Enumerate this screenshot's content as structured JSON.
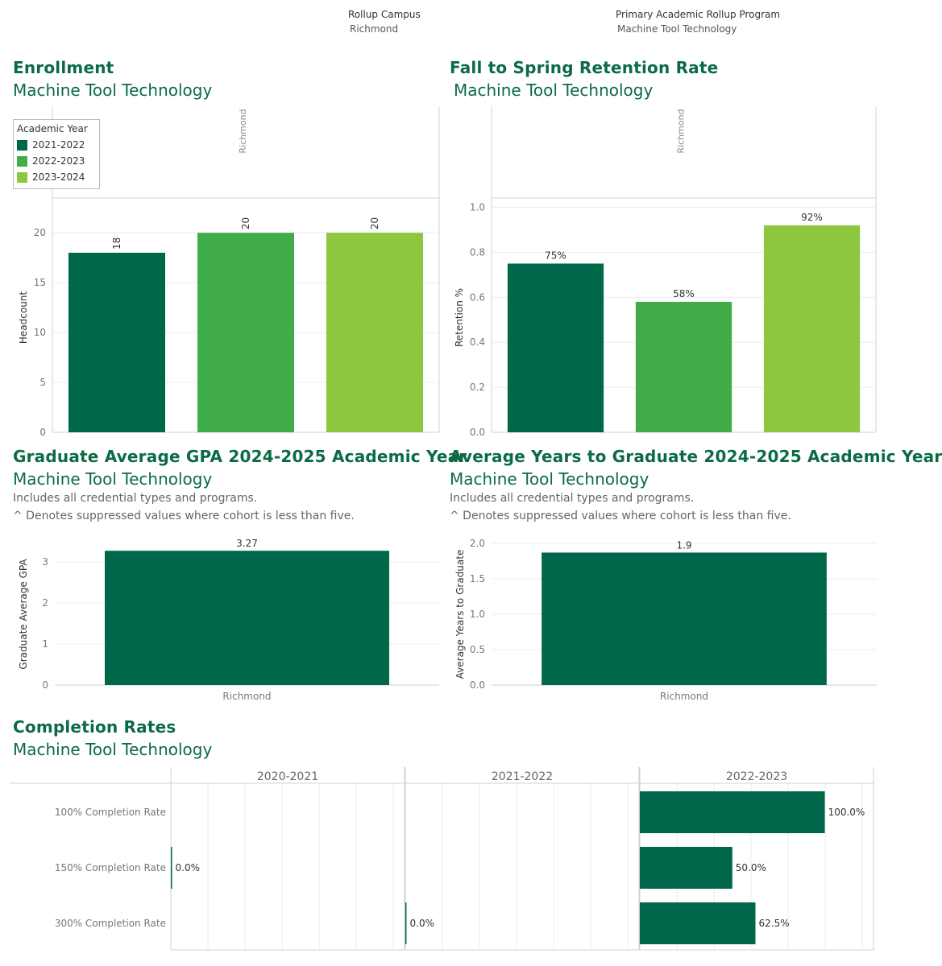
{
  "colors": {
    "title": "#0b6b45",
    "dark_green": "#00684a",
    "mid_green": "#40ad48",
    "light_green": "#8dc63f",
    "grid": "#ececec"
  },
  "filters": {
    "campus": {
      "label": "Rollup Campus",
      "value": "Richmond"
    },
    "program": {
      "label": "Primary Academic Rollup Program",
      "value": "Machine Tool Technology"
    }
  },
  "enrollment": {
    "title": "Enrollment",
    "subtitle": "Machine Tool Technology",
    "legend": {
      "title": "Academic Year",
      "items": [
        {
          "label": "2021-2022",
          "color": "#00684a"
        },
        {
          "label": "2022-2023",
          "color": "#40ad48"
        },
        {
          "label": "2023-2024",
          "color": "#8dc63f"
        }
      ]
    },
    "chart_data": {
      "type": "bar",
      "panel_label": "Richmond",
      "categories": [
        "2021-2022",
        "2022-2023",
        "2023-2024"
      ],
      "values": [
        18,
        20,
        20
      ],
      "data_labels": [
        "18",
        "20",
        "20"
      ],
      "ylabel": "Headcount",
      "ylim": [
        0,
        23
      ],
      "yticks": [
        0,
        5,
        10,
        15,
        20
      ],
      "ytick_labels": [
        "0",
        "5",
        "10",
        "15",
        "20"
      ]
    }
  },
  "retention": {
    "title": "Fall to Spring Retention Rate",
    "subtitle": "Machine Tool Technology",
    "chart_data": {
      "type": "bar",
      "panel_label": "Richmond",
      "categories": [
        "2021-2022",
        "2022-2023",
        "2023-2024"
      ],
      "values": [
        0.75,
        0.58,
        0.92
      ],
      "data_labels": [
        "75%",
        "58%",
        "92%"
      ],
      "ylabel": "Retention %",
      "ylim": [
        0,
        1.02
      ],
      "yticks": [
        0,
        0.2,
        0.4,
        0.6,
        0.8,
        1.0
      ],
      "ytick_labels": [
        "0.0",
        "0.2",
        "0.4",
        "0.6",
        "0.8",
        "1.0"
      ]
    }
  },
  "gpa": {
    "title": "Graduate Average GPA 2024-2025 Academic Year",
    "subtitle": "Machine Tool Technology",
    "note1": "Includes all credential types and programs.",
    "note2": "^ Denotes suppressed values where cohort is less than five.",
    "chart_data": {
      "type": "bar",
      "categories": [
        "Richmond"
      ],
      "values": [
        3.27
      ],
      "data_labels": [
        "3.27"
      ],
      "ylabel": "Graduate Average GPA",
      "ylim": [
        0,
        3.45
      ],
      "yticks": [
        0,
        1,
        2,
        3
      ],
      "ytick_labels": [
        "0",
        "1",
        "2",
        "3"
      ]
    }
  },
  "years": {
    "title": "Average Years to Graduate 2024-2025 Academic Year",
    "subtitle": "Machine Tool Technology",
    "note1": "Includes all credential types and programs.",
    "note2": "^ Denotes suppressed values where cohort is less than five.",
    "chart_data": {
      "type": "bar",
      "categories": [
        "Richmond"
      ],
      "values": [
        1.87
      ],
      "data_labels": [
        "1.9"
      ],
      "ylabel": "Average Years to Graduate",
      "ylim": [
        0,
        2.0
      ],
      "yticks": [
        0,
        0.5,
        1.0,
        1.5,
        2.0
      ],
      "ytick_labels": [
        "0.0",
        "0.5",
        "1.0",
        "1.5",
        "2.0"
      ]
    }
  },
  "completion": {
    "title": "Completion Rates",
    "subtitle": "Machine Tool Technology",
    "chart_data": {
      "type": "bar",
      "orientation": "horizontal",
      "columns": [
        "2020-2021",
        "2021-2022",
        "2022-2023"
      ],
      "rows": [
        "100% Completion Rate",
        "150% Completion Rate",
        "300% Completion Rate"
      ],
      "xlim": [
        0,
        1.2
      ],
      "cells": [
        [
          null,
          null,
          1.0
        ],
        [
          0.0,
          null,
          0.5
        ],
        [
          null,
          0.0,
          0.625
        ]
      ],
      "cell_labels": [
        [
          null,
          null,
          "100.0%"
        ],
        [
          "0.0%",
          null,
          "50.0%"
        ],
        [
          null,
          "0.0%",
          "62.5%"
        ]
      ]
    }
  }
}
